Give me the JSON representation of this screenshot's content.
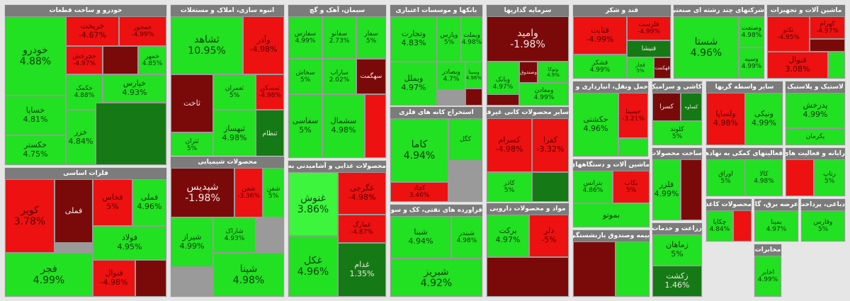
{
  "colors": {
    "green": "#22e022",
    "light_green": "#3cf53c",
    "dark_green": "#157a15",
    "red": "#ee1111",
    "dark_red": "#7a0a0a",
    "border": "#9a9a9a",
    "header": "#7c7c7c"
  },
  "sectors": [
    {
      "title": "خودرو و ساخت قطعات",
      "tiles": [
        {
          "n": "خودرو",
          "p": "4.88%",
          "c": "green"
        },
        {
          "n": "خریخت",
          "p": "-4.67%",
          "c": "red"
        },
        {
          "n": "خمحور",
          "p": "-4.99%",
          "c": "red"
        },
        {
          "n": "خچرخش",
          "p": "-4.97%",
          "c": "red"
        },
        {
          "n": "",
          "p": "",
          "c": "dark_red"
        },
        {
          "n": "خمهر",
          "p": "4.85%",
          "c": "green"
        },
        {
          "n": "خساپا",
          "p": "4.81%",
          "c": "green"
        },
        {
          "n": "خکمک",
          "p": "4.88%",
          "c": "green"
        },
        {
          "n": "خپارس",
          "p": "4.93%",
          "c": "green"
        },
        {
          "n": "خکستر",
          "p": "4.75%",
          "c": "green"
        },
        {
          "n": "خزر",
          "p": "4.84%",
          "c": "green"
        },
        {
          "n": "",
          "p": "",
          "c": "dark_green"
        }
      ]
    },
    {
      "title": "انبوه سازی، املاک و مستغلات",
      "tiles": [
        {
          "n": "ثشاهد",
          "p": "10.95%",
          "c": "green"
        },
        {
          "n": "وآذر",
          "p": "-4.98%",
          "c": "red"
        },
        {
          "n": "ثاخت",
          "p": "",
          "c": "dark_red"
        },
        {
          "n": "ثعمران",
          "p": "5%",
          "c": "green"
        },
        {
          "n": "ثمسکن",
          "p": "-4.98%",
          "c": "red"
        },
        {
          "n": "ثتران",
          "p": "5%",
          "c": "green"
        },
        {
          "n": "ثبهساز",
          "p": "4.98%",
          "c": "green"
        },
        {
          "n": "ثنظام",
          "p": "",
          "c": "dark_green"
        }
      ]
    },
    {
      "title": "سیمان، آهک و گچ",
      "tiles": [
        {
          "n": "سفارس",
          "p": "4.99%",
          "c": "green"
        },
        {
          "n": "سفانو",
          "p": "2.73%",
          "c": "green"
        },
        {
          "n": "سفار",
          "p": "5%",
          "c": "green"
        },
        {
          "n": "سخاش",
          "p": "5%",
          "c": "green"
        },
        {
          "n": "ساراب",
          "p": "2.02%",
          "c": "green"
        },
        {
          "n": "سهگمت",
          "p": "",
          "c": "dark_red"
        },
        {
          "n": "سفاسی",
          "p": "5%",
          "c": "green"
        },
        {
          "n": "سشمال",
          "p": "4.98%",
          "c": "green"
        },
        {
          "n": "",
          "p": "",
          "c": "red"
        }
      ]
    },
    {
      "title": "بانکها و موسسات اعتباری",
      "tiles": [
        {
          "n": "وتجارت",
          "p": "4.83%",
          "c": "green"
        },
        {
          "n": "وپارس",
          "p": "5%",
          "c": "green"
        },
        {
          "n": "وبملت",
          "p": "4.98%",
          "c": "green"
        },
        {
          "n": "وبصادر",
          "p": "4.7%",
          "c": "green"
        },
        {
          "n": "وبملل",
          "p": "4.97%",
          "c": "green"
        },
        {
          "n": "وسینا",
          "p": "4.96%",
          "c": "green"
        },
        {
          "n": "",
          "p": "",
          "c": "dark_red"
        }
      ]
    },
    {
      "title": "سرمایه گذاریها",
      "tiles": [
        {
          "n": "وامید",
          "p": "-1.98%",
          "c": "dark_red"
        },
        {
          "n": "وبانک",
          "p": "4.97%",
          "c": "green"
        },
        {
          "n": "وصندوق",
          "p": "",
          "c": "dark_red"
        },
        {
          "n": "ومعادن",
          "p": "4.99%",
          "c": "green"
        },
        {
          "n": "وتوکا",
          "p": "4.9%",
          "c": "green"
        },
        {
          "n": "",
          "p": "",
          "c": "dark_red"
        }
      ]
    },
    {
      "title": "قند و شکر",
      "tiles": [
        {
          "n": "قثابت",
          "p": "-4.99%",
          "c": "red"
        },
        {
          "n": "قلرست",
          "p": "-4.99%",
          "c": "red"
        },
        {
          "n": "قنیشا",
          "p": "",
          "c": "dark_green"
        },
        {
          "n": "قشکر",
          "p": "4.99%",
          "c": "green"
        },
        {
          "n": "قچار",
          "p": "5%",
          "c": "green"
        },
        {
          "n": "قهکمت",
          "p": "",
          "c": "dark_red"
        }
      ]
    },
    {
      "title": "شرکتهای چند رشته ای صنعتی",
      "tiles": [
        {
          "n": "شستا",
          "p": "4.96%",
          "c": "green"
        },
        {
          "n": "وصنعت",
          "p": "4.98%",
          "c": "green"
        },
        {
          "n": "وسپه",
          "p": "4.99%",
          "c": "green"
        }
      ]
    },
    {
      "title": "ماشین آلات و تجهیزات",
      "tiles": [
        {
          "n": "تکنو",
          "p": "-4.95%",
          "c": "red"
        },
        {
          "n": "کهرام",
          "p": "-4.97%",
          "c": "red"
        },
        {
          "n": "",
          "p": "",
          "c": "dark_red"
        },
        {
          "n": "فنوال",
          "p": "3.08%",
          "c": "red"
        },
        {
          "n": "",
          "p": "",
          "c": "green"
        }
      ]
    },
    {
      "title": "حمل ونقل، انبارداری و ارتباطات",
      "tiles": [
        {
          "n": "حکشتی",
          "p": "4.96%",
          "c": "green"
        },
        {
          "n": "حسینا",
          "p": "-3.21%",
          "c": "red"
        },
        {
          "n": "",
          "p": "",
          "c": "green"
        }
      ]
    },
    {
      "title": "کاشی و سرامیک",
      "tiles": [
        {
          "n": "کسرا",
          "p": "",
          "c": "dark_red"
        },
        {
          "n": "کساوه",
          "p": "",
          "c": "dark_green"
        },
        {
          "n": "کلوند",
          "p": "5%",
          "c": "green"
        }
      ]
    },
    {
      "title": "سایر واسطه گریها",
      "tiles": [
        {
          "n": "ولساپا",
          "p": "4.98%",
          "c": "red"
        },
        {
          "n": "ونیکی",
          "p": "4.99%",
          "c": "green"
        }
      ]
    },
    {
      "title": "لاستیک و پلاستیک",
      "tiles": [
        {
          "n": "پدرخش",
          "p": "4.99%",
          "c": "green"
        },
        {
          "n": "پکرمان",
          "p": "",
          "c": "green"
        }
      ]
    },
    {
      "title": "فلزات اساسی",
      "tiles": [
        {
          "n": "کویر",
          "p": "3.78%",
          "c": "red"
        },
        {
          "n": "فملی",
          "p": "",
          "c": "dark_red"
        },
        {
          "n": "فخاس",
          "p": "5%",
          "c": "red"
        },
        {
          "n": "فملی",
          "p": "4.96%",
          "c": "green"
        },
        {
          "n": "فولاد",
          "p": "4.95%",
          "c": "green"
        },
        {
          "n": "فجر",
          "p": "4.99%",
          "c": "green"
        },
        {
          "n": "فنوال",
          "p": "-4.98%",
          "c": "red"
        },
        {
          "n": "",
          "p": "",
          "c": "dark_red"
        }
      ]
    },
    {
      "title": "محصولات شیمیایی",
      "tiles": [
        {
          "n": "شپدیس",
          "p": "-1.98%",
          "c": "dark_red"
        },
        {
          "n": "شفن",
          "p": "-3.36%",
          "c": "red"
        },
        {
          "n": "شفن",
          "p": "5%",
          "c": "green"
        },
        {
          "n": "شیراز",
          "p": "4.99%",
          "c": "green"
        },
        {
          "n": "شاراک",
          "p": "4.93%",
          "c": "green"
        },
        {
          "n": "شپنا",
          "p": "4.98%",
          "c": "green"
        }
      ]
    },
    {
      "title": "محصولات غذایی و آشامیدنی به جز قند و شکر",
      "tiles": [
        {
          "n": "غنوش",
          "p": "3.86%",
          "c": "light_green"
        },
        {
          "n": "غگرجی",
          "p": "-4.98%",
          "c": "red"
        },
        {
          "n": "غمارگ",
          "p": "-4.87%",
          "c": "red"
        },
        {
          "n": "غکل",
          "p": "4.96%",
          "c": "green"
        },
        {
          "n": "غدام",
          "p": "1.35%",
          "c": "dark_green"
        }
      ]
    },
    {
      "title": "استخراج کانه های فلزی",
      "tiles": [
        {
          "n": "کاما",
          "p": "4.94%",
          "c": "green"
        },
        {
          "n": "کگل",
          "p": "",
          "c": "green"
        },
        {
          "n": "کچاد",
          "p": "3.46%",
          "c": "red"
        }
      ]
    },
    {
      "title": "سایر محصولات کانی غیرفلزی",
      "tiles": [
        {
          "n": "کسرام",
          "p": "-4.98%",
          "c": "red"
        },
        {
          "n": "کفرا",
          "p": "-3.32%",
          "c": "red"
        },
        {
          "n": "کاذر",
          "p": "5%",
          "c": "green"
        },
        {
          "n": "",
          "p": "",
          "c": "dark_green"
        }
      ]
    },
    {
      "title": "فراورده های نفتی، کک و سوخت هسته ای",
      "tiles": [
        {
          "n": "شبنا",
          "p": "4.94%",
          "c": "green"
        },
        {
          "n": "شبندر",
          "p": "4.98%",
          "c": "green"
        },
        {
          "n": "شبریز",
          "p": "4.92%",
          "c": "green"
        }
      ]
    },
    {
      "title": "مواد و محصولات دارویی",
      "tiles": [
        {
          "n": "برکت",
          "p": "4.97%",
          "c": "green"
        },
        {
          "n": "دلر",
          "p": "-5%",
          "c": "red"
        },
        {
          "n": "",
          "p": "",
          "c": "dark_red"
        }
      ]
    },
    {
      "title": "ماشین آلات و دستگاههای برقی",
      "tiles": [
        {
          "n": "بترانس",
          "p": "4.86%",
          "c": "green"
        },
        {
          "n": "بکاب",
          "p": "5%",
          "c": "red"
        },
        {
          "n": "بموتو",
          "p": "",
          "c": "green"
        }
      ]
    },
    {
      "title": "ساخت محصولات فلزی",
      "tiles": [
        {
          "n": "فلزر",
          "p": "4.99%",
          "c": "green"
        },
        {
          "n": "",
          "p": "",
          "c": "dark_red"
        }
      ]
    },
    {
      "title": "بیمه وصندوق بازنشستگی",
      "tiles": [
        {
          "n": "",
          "p": "",
          "c": "dark_red"
        },
        {
          "n": "",
          "p": "",
          "c": "green"
        }
      ]
    },
    {
      "title": "زراعت و خدمات",
      "tiles": [
        {
          "n": "زماهان",
          "p": "5%",
          "c": "green"
        },
        {
          "n": "زکشت",
          "p": "1.46%",
          "c": "dark_green"
        }
      ]
    },
    {
      "title": "فعالیتهای کمکی به نهادهای مالی",
      "tiles": [
        {
          "n": "اوراق",
          "p": "5%",
          "c": "green"
        },
        {
          "n": "کالا",
          "p": "4.98%",
          "c": "green"
        }
      ]
    },
    {
      "title": "محصولات کاغذی",
      "tiles": [
        {
          "n": "چکاپا",
          "p": "4.84%",
          "c": "green"
        },
        {
          "n": "",
          "p": "",
          "c": "red"
        }
      ]
    },
    {
      "title": "عرضه برق، گاز، بخار",
      "tiles": [
        {
          "n": "بمپنا",
          "p": "4.97%",
          "c": "green"
        }
      ]
    },
    {
      "title": "رایانه و فعالیت های وابسته",
      "tiles": [
        {
          "n": "",
          "p": "",
          "c": "red"
        },
        {
          "n": "رتاپ",
          "p": "5%",
          "c": "green"
        }
      ]
    },
    {
      "title": "دباغی، پرداخت چرم",
      "tiles": [
        {
          "n": "وقارس",
          "p": "5%",
          "c": "green"
        }
      ]
    },
    {
      "title": "مخابرات",
      "tiles": [
        {
          "n": "اخابر",
          "p": "4.99%",
          "c": "green"
        }
      ]
    }
  ]
}
